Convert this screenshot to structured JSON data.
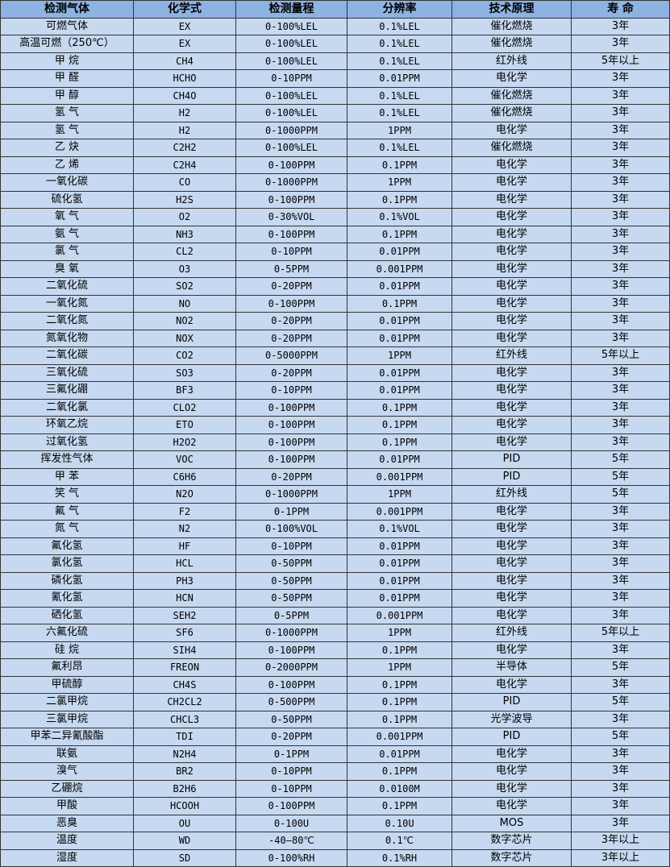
{
  "table": {
    "headers": [
      "检测气体",
      "化学式",
      "检测量程",
      "分辨率",
      "技术原理",
      "寿 命"
    ],
    "rows": [
      [
        "可燃气体",
        "EX",
        "0-100%LEL",
        "0.1%LEL",
        "催化燃烧",
        "3年"
      ],
      [
        "高温可燃（250℃）",
        "EX",
        "0-100%LEL",
        "0.1%LEL",
        "催化燃烧",
        "3年"
      ],
      [
        "甲 烷",
        "CH4",
        "0-100%LEL",
        "0.1%LEL",
        "红外线",
        "5年以上"
      ],
      [
        "甲 醛",
        "HCHO",
        "0-10PPM",
        "0.01PPM",
        "电化学",
        "3年"
      ],
      [
        "甲 醇",
        "CH4O",
        "0-100%LEL",
        "0.1%LEL",
        "催化燃烧",
        "3年"
      ],
      [
        "氢 气",
        "H2",
        "0-100%LEL",
        "0.1%LEL",
        "催化燃烧",
        "3年"
      ],
      [
        "氢 气",
        "H2",
        "0-1000PPM",
        "1PPM",
        "电化学",
        "3年"
      ],
      [
        "乙 炔",
        "C2H2",
        "0-100%LEL",
        "0.1%LEL",
        "催化燃烧",
        "3年"
      ],
      [
        "乙 烯",
        "C2H4",
        "0-100PPM",
        "0.1PPM",
        "电化学",
        "3年"
      ],
      [
        "一氧化碳",
        "CO",
        "0-1000PPM",
        "1PPM",
        "电化学",
        "3年"
      ],
      [
        "硫化氢",
        "H2S",
        "0-100PPM",
        "0.1PPM",
        "电化学",
        "3年"
      ],
      [
        "氧 气",
        "O2",
        "0-30%VOL",
        "0.1%VOL",
        "电化学",
        "3年"
      ],
      [
        "氨 气",
        "NH3",
        "0-100PPM",
        "0.1PPM",
        "电化学",
        "3年"
      ],
      [
        "氯 气",
        "CL2",
        "0-10PPM",
        "0.01PPM",
        "电化学",
        "3年"
      ],
      [
        "臭 氧",
        "O3",
        "0-5PPM",
        "0.001PPM",
        "电化学",
        "3年"
      ],
      [
        "二氧化硫",
        "SO2",
        "0-20PPM",
        "0.01PPM",
        "电化学",
        "3年"
      ],
      [
        "一氧化氮",
        "NO",
        "0-100PPM",
        "0.1PPM",
        "电化学",
        "3年"
      ],
      [
        "二氧化氮",
        "NO2",
        "0-20PPM",
        "0.01PPM",
        "电化学",
        "3年"
      ],
      [
        "氮氧化物",
        "NOX",
        "0-20PPM",
        "0.01PPM",
        "电化学",
        "3年"
      ],
      [
        "二氧化碳",
        "CO2",
        "0-5000PPM",
        "1PPM",
        "红外线",
        "5年以上"
      ],
      [
        "三氧化硫",
        "SO3",
        "0-20PPM",
        "0.01PPM",
        "电化学",
        "3年"
      ],
      [
        "三氟化硼",
        "BF3",
        "0-10PPM",
        "0.01PPM",
        "电化学",
        "3年"
      ],
      [
        "二氧化氯",
        "CLO2",
        "0-100PPM",
        "0.1PPM",
        "电化学",
        "3年"
      ],
      [
        "环氧乙烷",
        "ETO",
        "0-100PPM",
        "0.1PPM",
        "电化学",
        "3年"
      ],
      [
        "过氧化氢",
        "H2O2",
        "0-100PPM",
        "0.1PPM",
        "电化学",
        "3年"
      ],
      [
        "挥发性气体",
        "VOC",
        "0-100PPM",
        "0.01PPM",
        "PID",
        "5年"
      ],
      [
        "甲 苯",
        "C6H6",
        "0-20PPM",
        "0.001PPM",
        "PID",
        "5年"
      ],
      [
        "笑 气",
        "N2O",
        "0-1000PPM",
        "1PPM",
        "红外线",
        "5年"
      ],
      [
        "氟 气",
        "F2",
        "0-1PPM",
        "0.001PPM",
        "电化学",
        "3年"
      ],
      [
        "氮 气",
        "N2",
        "0-100%VOL",
        "0.1%VOL",
        "电化学",
        "3年"
      ],
      [
        "氟化氢",
        "HF",
        "0-10PPM",
        "0.01PPM",
        "电化学",
        "3年"
      ],
      [
        "氯化氢",
        "HCL",
        "0-50PPM",
        "0.01PPM",
        "电化学",
        "3年"
      ],
      [
        "磷化氢",
        "PH3",
        "0-50PPM",
        "0.01PPM",
        "电化学",
        "3年"
      ],
      [
        "氰化氢",
        "HCN",
        "0-50PPM",
        "0.01PPM",
        "电化学",
        "3年"
      ],
      [
        "硒化氢",
        "SEH2",
        "0-5PPM",
        "0.001PPM",
        "电化学",
        "3年"
      ],
      [
        "六氟化硫",
        "SF6",
        "0-1000PPM",
        "1PPM",
        "红外线",
        "5年以上"
      ],
      [
        "硅 烷",
        "SIH4",
        "0-100PPM",
        "0.1PPM",
        "电化学",
        "3年"
      ],
      [
        "氟利昂",
        "FREON",
        "0-2000PPM",
        "1PPM",
        "半导体",
        "5年"
      ],
      [
        "甲硫醇",
        "CH4S",
        "0-100PPM",
        "0.1PPM",
        "电化学",
        "3年"
      ],
      [
        "二氯甲烷",
        "CH2CL2",
        "0-500PPM",
        "0.1PPM",
        "PID",
        "5年"
      ],
      [
        "三氯甲烷",
        "CHCL3",
        "0-50PPM",
        "0.1PPM",
        "光学波导",
        "3年"
      ],
      [
        "甲苯二异氰酸酯",
        "TDI",
        "0-20PPM",
        "0.001PPM",
        "PID",
        "5年"
      ],
      [
        "联氨",
        "N2H4",
        "0-1PPM",
        "0.01PPM",
        "电化学",
        "3年"
      ],
      [
        "溴气",
        "BR2",
        "0-10PPM",
        "0.1PPM",
        "电化学",
        "3年"
      ],
      [
        "乙硼烷",
        "B2H6",
        "0-10PPM",
        "0.0100M",
        "电化学",
        "3年"
      ],
      [
        "甲酸",
        "HCOOH",
        "0-100PPM",
        "0.1PPM",
        "电化学",
        "3年"
      ],
      [
        "恶臭",
        "OU",
        "0-100U",
        "0.10U",
        "MOS",
        "3年"
      ],
      [
        "温度",
        "WD",
        "-40—80℃",
        "0.1℃",
        "数字芯片",
        "3年以上"
      ],
      [
        "湿度",
        "SD",
        "0-100%RH",
        "0.1%RH",
        "数字芯片",
        "3年以上"
      ]
    ]
  },
  "colors": {
    "header_bg": "#8db3e2",
    "cell_bg": "#c6d9f1",
    "border": "#333333"
  }
}
